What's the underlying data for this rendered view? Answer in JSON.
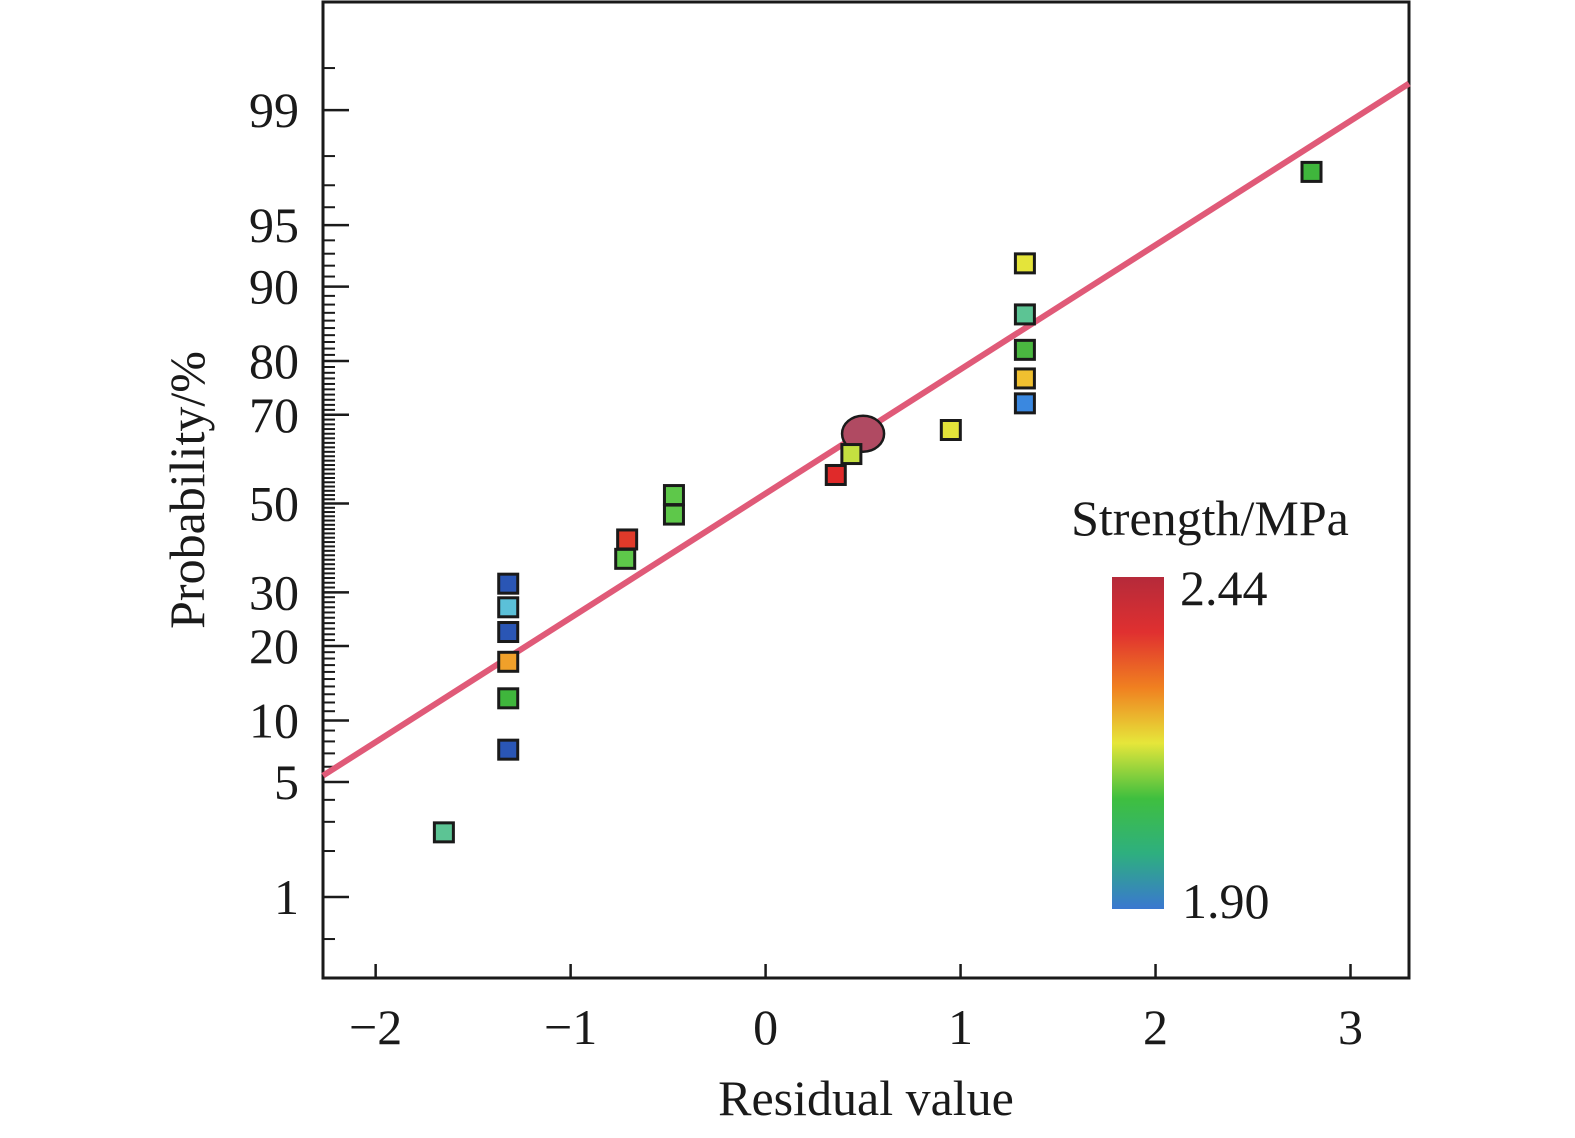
{
  "chart_data": {
    "type": "scatter",
    "title": "",
    "xlabel": "Residual value",
    "ylabel": "Probability/%",
    "xlim": [
      -2.27,
      3.3
    ],
    "ylim": [
      0.25,
      99.85
    ],
    "y_scale": "normal-probability",
    "grid": false,
    "x_ticks": [
      -2,
      -1,
      0,
      1,
      2,
      3
    ],
    "x_tick_labels": [
      "−2",
      "−1",
      "0",
      "1",
      "2",
      "3"
    ],
    "y_ticks": [
      1,
      5,
      10,
      20,
      30,
      50,
      70,
      80,
      90,
      95,
      99
    ],
    "y_tick_labels": [
      "1",
      "5",
      "10",
      "20",
      "30",
      "50",
      "70",
      "80",
      "90",
      "95",
      "99"
    ],
    "fit_line": {
      "x": [
        -2.27,
        3.3
      ],
      "y": [
        5.4,
        99.35
      ],
      "color": "#e05a78"
    },
    "highlight_point": {
      "x": 0.5,
      "y": 66,
      "color": "#b04a62"
    },
    "points": [
      {
        "x": -1.65,
        "y": 2.6,
        "color": "#5cc494"
      },
      {
        "x": -1.32,
        "y": 7.3,
        "color": "#2a56b5"
      },
      {
        "x": -1.32,
        "y": 12.5,
        "color": "#3fb63c"
      },
      {
        "x": -1.32,
        "y": 17.5,
        "color": "#f0a02a"
      },
      {
        "x": -1.32,
        "y": 22.4,
        "color": "#2a56b5"
      },
      {
        "x": -1.32,
        "y": 27.0,
        "color": "#5bc0d8"
      },
      {
        "x": -1.32,
        "y": 31.8,
        "color": "#2a56b5"
      },
      {
        "x": -0.72,
        "y": 37.2,
        "color": "#5ec84a"
      },
      {
        "x": -0.71,
        "y": 41.6,
        "color": "#e03a2a"
      },
      {
        "x": -0.47,
        "y": 47.4,
        "color": "#5ec84a"
      },
      {
        "x": -0.47,
        "y": 52.0,
        "color": "#5ec84a"
      },
      {
        "x": 0.36,
        "y": 56.7,
        "color": "#e02a2a"
      },
      {
        "x": 0.44,
        "y": 61.5,
        "color": "#c4e040"
      },
      {
        "x": 0.95,
        "y": 66.8,
        "color": "#e4e43a"
      },
      {
        "x": 1.33,
        "y": 72.3,
        "color": "#3a88e0"
      },
      {
        "x": 1.33,
        "y": 77.0,
        "color": "#f0c030"
      },
      {
        "x": 1.33,
        "y": 81.8,
        "color": "#4ab840"
      },
      {
        "x": 1.33,
        "y": 86.8,
        "color": "#5cc494"
      },
      {
        "x": 1.33,
        "y": 92.2,
        "color": "#e4e43a"
      },
      {
        "x": 2.8,
        "y": 97.5,
        "color": "#3fb63c"
      }
    ],
    "colorbar": {
      "title": "Strength/MPa",
      "max_label": "2.44",
      "min_label": "1.90",
      "min": 1.9,
      "max": 2.44,
      "stops": [
        "#b52a3a",
        "#e03030",
        "#f08020",
        "#e6e63a",
        "#3fbf3f",
        "#2eaf7f",
        "#3a78d0"
      ]
    }
  }
}
